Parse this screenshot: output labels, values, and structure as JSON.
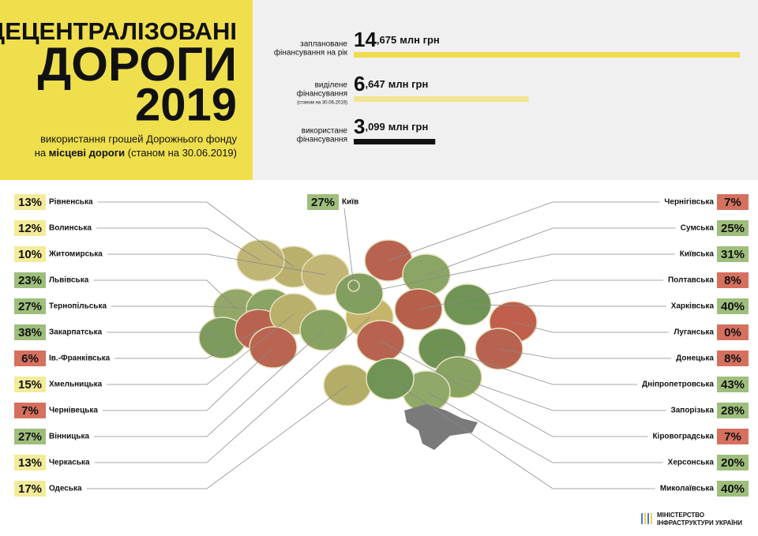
{
  "header": {
    "title_line_1": "ДЕЦЕНТРАЛІЗОВАНІ",
    "title_line_2": "ДОРОГИ",
    "title_line_3": "2019",
    "subtitle_line_1": "використання грошей Дорожнього фонду",
    "subtitle_line_2": [
      "на ",
      "місцеві дороги",
      " (станом на 30.06.2019)"
    ]
  },
  "funding": [
    {
      "label_lines": [
        "заплановане",
        "фінансування на рік"
      ],
      "amount_whole": "14",
      "amount_rest": ",675",
      "unit": "млн грн",
      "value": 14675,
      "color": "#f0dc4a"
    },
    {
      "label_lines": [
        "виділене",
        "фінансування",
        "(станом на 30.06.2019)"
      ],
      "amount_whole": "6",
      "amount_rest": ",647",
      "unit": "млн грн",
      "value": 6647,
      "color": "#f1e58f"
    },
    {
      "label_lines": [
        "використане",
        "фінансування"
      ],
      "amount_whole": "3",
      "amount_rest": ",099",
      "unit": "млн грн",
      "value": 3099,
      "color": "#111111"
    }
  ],
  "capital": {
    "name": "Київ",
    "label": "27%",
    "color": "#9ebe7c",
    "fill": "#7f9c5e"
  },
  "regions_left": [
    {
      "name": "Рівненська",
      "label": "13%",
      "color": "#f3eb99",
      "fill": "#b9b06c"
    },
    {
      "name": "Волинська",
      "label": "12%",
      "color": "#f3eb99",
      "fill": "#bfb574"
    },
    {
      "name": "Житомирська",
      "label": "10%",
      "color": "#f3eb99",
      "fill": "#c1b676"
    },
    {
      "name": "Львівська",
      "label": "23%",
      "color": "#9ebe7c",
      "fill": "#93a769"
    },
    {
      "name": "Тернопільська",
      "label": "27%",
      "color": "#9ebe7c",
      "fill": "#89a463"
    },
    {
      "name": "Закарпатська",
      "label": "38%",
      "color": "#9ebe7c",
      "fill": "#7d9b5c"
    },
    {
      "name": "Ів.-Франківська",
      "label": "6%",
      "color": "#d5705f",
      "fill": "#b8634f"
    },
    {
      "name": "Хмельницька",
      "label": "15%",
      "color": "#f3eb99",
      "fill": "#b8b06b"
    },
    {
      "name": "Чернівецька",
      "label": "7%",
      "color": "#d5705f",
      "fill": "#ba6551"
    },
    {
      "name": "Вінницька",
      "label": "27%",
      "color": "#9ebe7c",
      "fill": "#88a262"
    },
    {
      "name": "Черкаська",
      "label": "13%",
      "color": "#f3eb99",
      "fill": "#c4b56a"
    },
    {
      "name": "Одеська",
      "label": "17%",
      "color": "#f3eb99",
      "fill": "#b4ad68"
    }
  ],
  "regions_right": [
    {
      "name": "Чернігівська",
      "label": "7%",
      "color": "#d5705f",
      "fill": "#b8634f"
    },
    {
      "name": "Сумська",
      "label": "25%",
      "color": "#9ebe7c",
      "fill": "#8aa564"
    },
    {
      "name": "Київська",
      "label": "31%",
      "color": "#9ebe7c",
      "fill": "#839f60"
    },
    {
      "name": "Полтавська",
      "label": "8%",
      "color": "#d5705f",
      "fill": "#b6604c"
    },
    {
      "name": "Харківська",
      "label": "40%",
      "color": "#9ebe7c",
      "fill": "#6f9455"
    },
    {
      "name": "Луганська",
      "label": "0%",
      "color": "#d5705f",
      "fill": "#bf5f4c"
    },
    {
      "name": "Донецька",
      "label": "8%",
      "color": "#d5705f",
      "fill": "#b86350"
    },
    {
      "name": "Дніпропетровська",
      "label": "43%",
      "color": "#9ebe7c",
      "fill": "#6d9254"
    },
    {
      "name": "Запорізька",
      "label": "28%",
      "color": "#9ebe7c",
      "fill": "#88a262"
    },
    {
      "name": "Кіровоградська",
      "label": "7%",
      "color": "#d5705f",
      "fill": "#b8634f"
    },
    {
      "name": "Херсонська",
      "label": "20%",
      "color": "#9ebe7c",
      "fill": "#91a968"
    },
    {
      "name": "Миколаївська",
      "label": "40%",
      "color": "#9ebe7c",
      "fill": "#6f9455"
    }
  ],
  "footer": {
    "line_1": "МІНІСТЕРСТВО",
    "line_2": "ІНФРАСТРУКТУРИ УКРАЇНИ"
  }
}
